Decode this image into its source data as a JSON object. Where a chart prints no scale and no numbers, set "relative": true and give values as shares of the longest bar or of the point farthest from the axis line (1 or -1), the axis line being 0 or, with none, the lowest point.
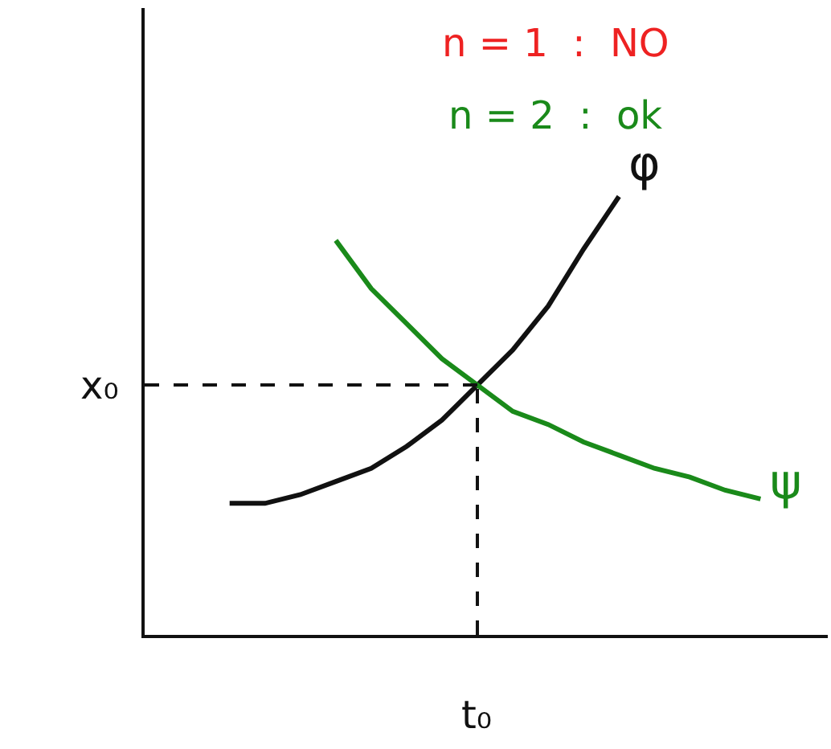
{
  "chart_data": {
    "type": "line",
    "title": "n = 1  :  NO",
    "subtitle": "n = 2  :  ok",
    "relative": true,
    "categories": [
      null,
      null,
      null,
      null,
      null,
      null,
      null,
      null,
      null,
      null,
      null,
      null,
      null,
      null,
      null,
      null
    ],
    "series": [
      {
        "name": "φ",
        "color": "#111111",
        "values": [
          0.3,
          0.3,
          0.32,
          0.35,
          0.38,
          0.43,
          0.49,
          0.57,
          0.65,
          0.75,
          0.88,
          1.0,
          null,
          null,
          null,
          null
        ]
      },
      {
        "name": "ψ",
        "color": "#1a8a1a",
        "values": [
          null,
          null,
          null,
          0.9,
          0.79,
          0.71,
          0.63,
          0.57,
          0.51,
          0.48,
          0.44,
          0.41,
          0.38,
          0.36,
          0.33,
          0.31
        ]
      }
    ],
    "ref_lines": [
      {
        "axis": "y",
        "value": 0.57,
        "label": "x₀",
        "line_style": "dashed"
      }
    ],
    "annotations": [
      "t₀"
    ],
    "legend": false,
    "marker": "none",
    "line_style": "solid"
  }
}
